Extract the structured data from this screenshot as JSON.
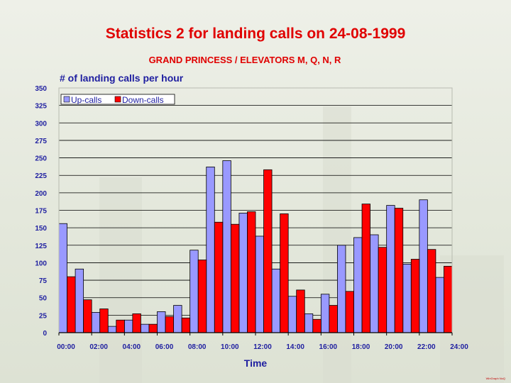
{
  "title": "Statistics 2 for landing calls on 24-08-1999",
  "subtitle": "GRAND PRINCESS / ELEVATORS M, Q, N, R",
  "footer_note": "WinGraph NoQ",
  "chart_data": {
    "type": "bar",
    "title": "# of landing calls per hour",
    "xlabel": "Time",
    "ylabel": "",
    "ylim": [
      0,
      350
    ],
    "yticks": [
      0,
      25,
      50,
      75,
      100,
      125,
      150,
      175,
      200,
      225,
      250,
      275,
      300,
      325,
      350
    ],
    "xtick_labels": [
      "00:00",
      "02:00",
      "04:00",
      "06:00",
      "08:00",
      "10:00",
      "12:00",
      "14:00",
      "16:00",
      "18:00",
      "20:00",
      "22:00",
      "24:00"
    ],
    "grid": true,
    "legend": "top-left",
    "categories": [
      "0",
      "1",
      "2",
      "3",
      "4",
      "5",
      "6",
      "7",
      "8",
      "9",
      "10",
      "11",
      "12",
      "13",
      "14",
      "15",
      "16",
      "17",
      "18",
      "19",
      "20",
      "21",
      "22",
      "23"
    ],
    "series": [
      {
        "name": "Up-calls",
        "color": "#9999ff",
        "values": [
          156,
          91,
          29,
          9,
          18,
          12,
          30,
          39,
          118,
          237,
          246,
          171,
          138,
          91,
          52,
          27,
          55,
          125,
          136,
          140,
          182,
          98,
          190,
          79
        ]
      },
      {
        "name": "Down-calls",
        "color": "#ff0000",
        "values": [
          80,
          47,
          34,
          18,
          27,
          12,
          23,
          21,
          104,
          158,
          155,
          173,
          233,
          170,
          61,
          19,
          39,
          59,
          184,
          122,
          178,
          105,
          119,
          95
        ]
      }
    ]
  }
}
